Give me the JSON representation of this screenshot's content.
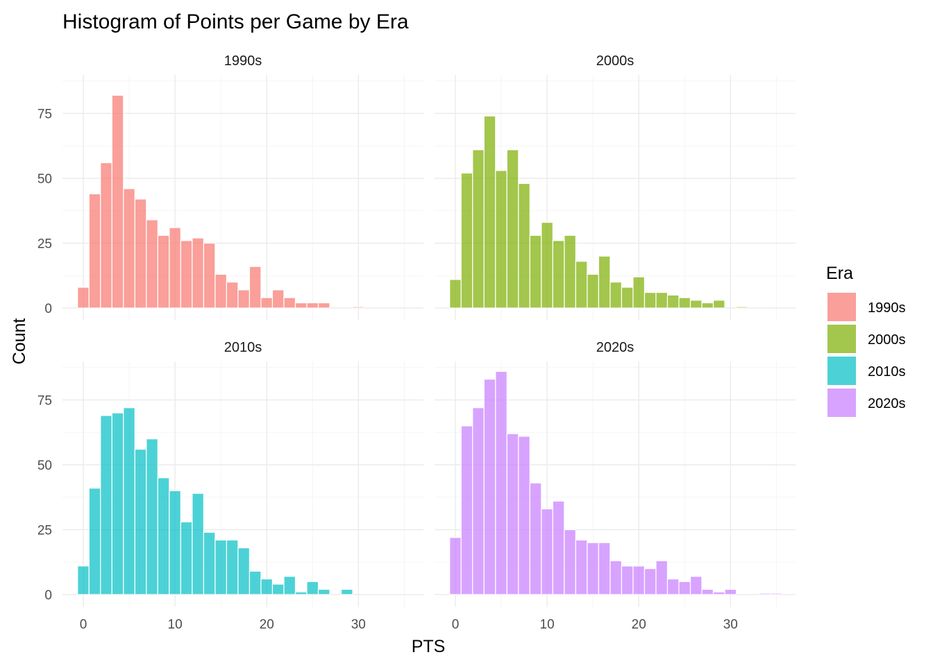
{
  "chart_data": {
    "type": "bar",
    "title": "Histogram of Points per Game by Era",
    "xlabel": "PTS",
    "ylabel": "Count",
    "xlim": [
      -1,
      35.5
    ],
    "ylim": [
      0,
      88
    ],
    "x_ticks": [
      0,
      10,
      20,
      30
    ],
    "y_ticks": [
      0,
      25,
      50,
      75
    ],
    "grid": true,
    "legend": {
      "title": "Era",
      "position": "right",
      "items": [
        {
          "label": "1990s",
          "color": "#f8766d"
        },
        {
          "label": "2000s",
          "color": "#7cae00"
        },
        {
          "label": "2010s",
          "color": "#00bfc4"
        },
        {
          "label": "2020s",
          "color": "#c77cff"
        }
      ]
    },
    "bin_width": 1.25,
    "bin_centers": [
      0,
      1.25,
      2.5,
      3.75,
      5,
      6.25,
      7.5,
      8.75,
      10,
      11.25,
      12.5,
      13.75,
      15,
      16.25,
      17.5,
      18.75,
      20,
      21.25,
      22.5,
      23.75,
      25,
      26.25,
      27.5,
      28.75,
      30,
      31.25,
      32.5,
      33.75,
      35
    ],
    "series": [
      {
        "name": "1990s",
        "color": "#f8766d",
        "values": [
          8,
          44,
          56,
          82,
          46,
          42,
          34,
          28,
          31,
          26,
          27,
          25,
          13,
          10,
          7,
          16,
          4,
          7,
          4,
          2,
          2,
          2,
          0,
          0,
          0.5,
          0,
          0,
          0,
          0
        ]
      },
      {
        "name": "2000s",
        "color": "#7cae00",
        "values": [
          11,
          52,
          61,
          74,
          53,
          61,
          48,
          28,
          33,
          26,
          28,
          18,
          13,
          20,
          10,
          8,
          12,
          6,
          6,
          5,
          4,
          3,
          2,
          3,
          0,
          0.5,
          0,
          0,
          0
        ]
      },
      {
        "name": "2010s",
        "color": "#00bfc4",
        "values": [
          11,
          41,
          69,
          70,
          72,
          56,
          60,
          45,
          40,
          28,
          39,
          24,
          21,
          21,
          18,
          9,
          6,
          4,
          7,
          1,
          5,
          2,
          0,
          2,
          0,
          0,
          0,
          0,
          0
        ]
      },
      {
        "name": "2020s",
        "color": "#c77cff",
        "values": [
          22,
          65,
          72,
          83,
          86,
          62,
          61,
          43,
          33,
          36,
          25,
          21,
          20,
          20,
          13,
          11,
          11,
          10,
          13,
          6,
          5,
          7,
          2,
          1,
          2,
          0,
          0,
          0.5,
          0.5
        ]
      }
    ]
  }
}
